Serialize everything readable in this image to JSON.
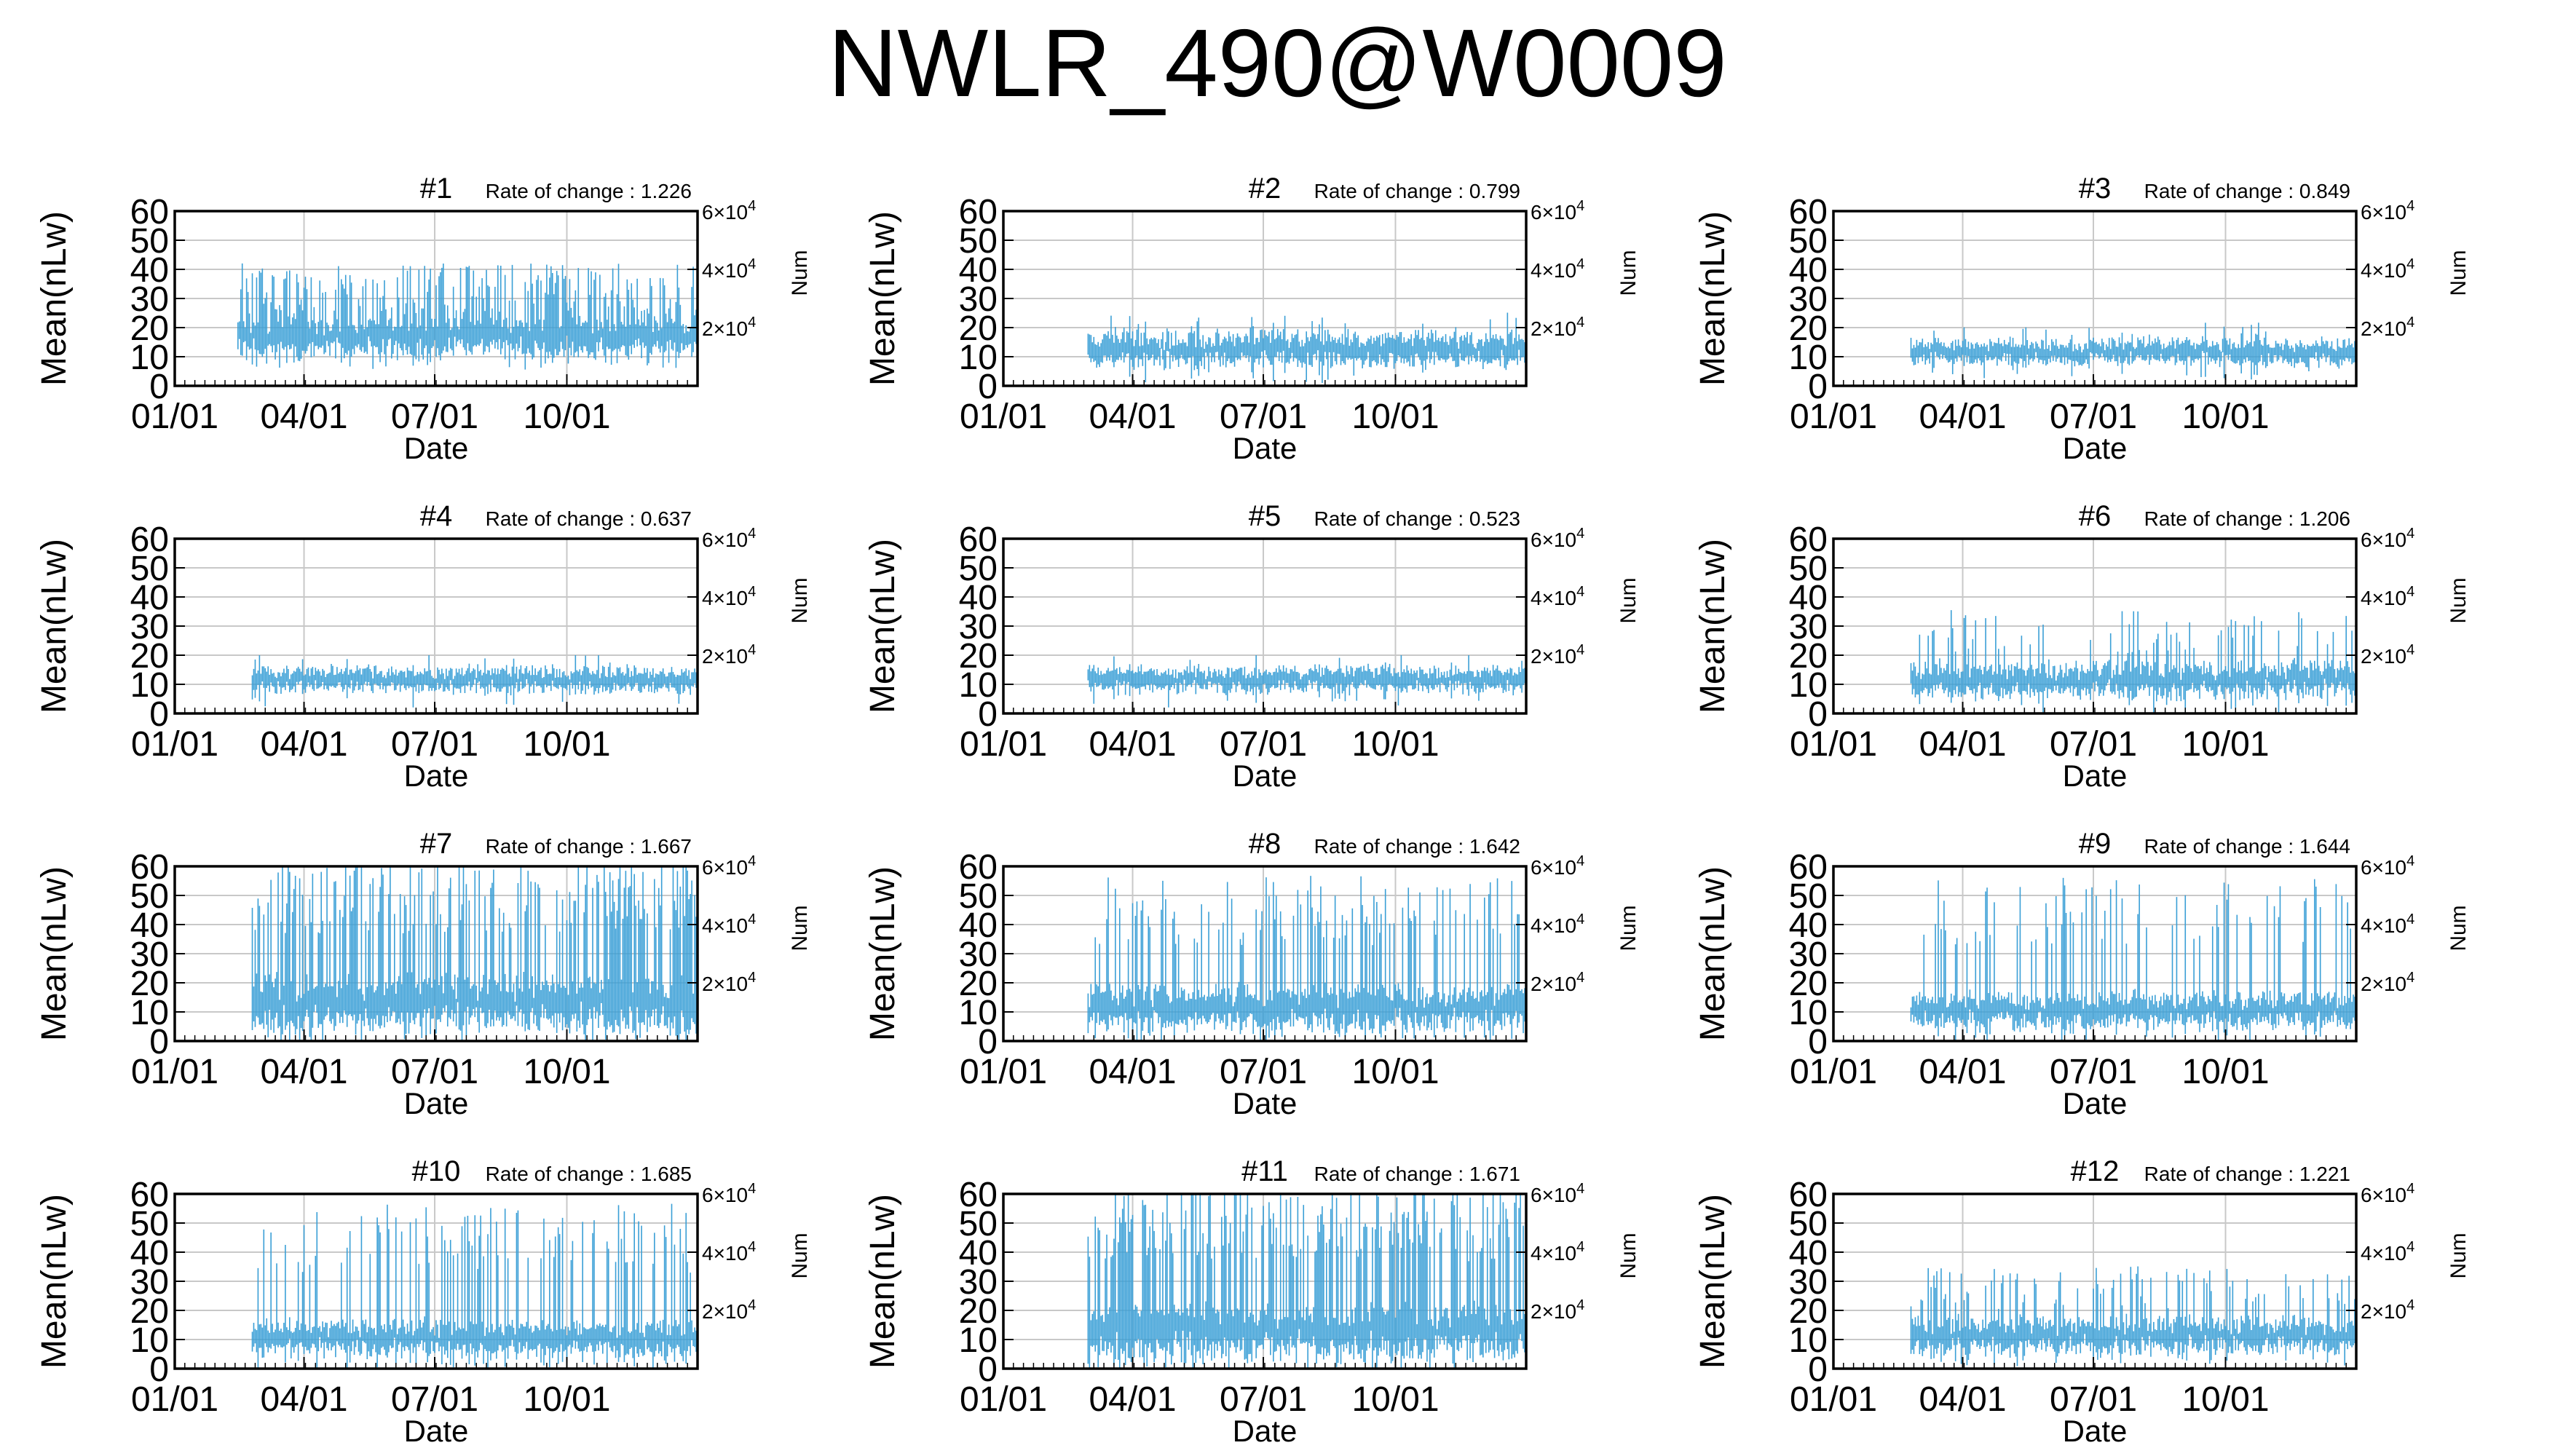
{
  "page": {
    "title": "NWLR_490@W0009"
  },
  "common": {
    "xlabel": "Date",
    "ylabel": "Mean(nLw)",
    "y2label": "Num",
    "rate_prefix": "Rate of change : ",
    "x_ticks": [
      {
        "label": "01/01",
        "day": 1
      },
      {
        "label": "04/01",
        "day": 91
      },
      {
        "label": "07/01",
        "day": 182
      },
      {
        "label": "10/01",
        "day": 274
      }
    ],
    "y_ticks": [
      0,
      10,
      20,
      30,
      40,
      50,
      60
    ],
    "y2_ticks": [
      {
        "base": "2×10",
        "exp": "4",
        "value": 20000
      },
      {
        "base": "4×10",
        "exp": "4",
        "value": 40000
      },
      {
        "base": "6×10",
        "exp": "4",
        "value": 60000
      }
    ],
    "colors": {
      "series": "#3a9fd6",
      "grid": "#c8c8c8",
      "axis": "#000000"
    }
  },
  "chart_data": [
    {
      "type": "scatter",
      "title": "#1",
      "rate_of_change": "1.226",
      "x_unit": "day of year",
      "xlim": [
        1,
        365
      ],
      "ylim": [
        0,
        60
      ],
      "y2lim": [
        0,
        60000
      ],
      "grid": true,
      "data_start": 45,
      "data_end": 365,
      "base_level": 18,
      "noise": 4,
      "spike_level": 30,
      "spike_prob": 0.55,
      "max_value": 60
    },
    {
      "type": "scatter",
      "title": "#2",
      "rate_of_change": "0.799",
      "x_unit": "day of year",
      "xlim": [
        1,
        365
      ],
      "ylim": [
        0,
        60
      ],
      "y2lim": [
        0,
        60000
      ],
      "grid": true,
      "data_start": 60,
      "data_end": 365,
      "base_level": 13,
      "noise": 4,
      "spike_level": 18,
      "spike_prob": 0.15,
      "max_value": 26
    },
    {
      "type": "scatter",
      "title": "#3",
      "rate_of_change": "0.849",
      "x_unit": "day of year",
      "xlim": [
        1,
        365
      ],
      "ylim": [
        0,
        60
      ],
      "y2lim": [
        0,
        60000
      ],
      "grid": true,
      "data_start": 55,
      "data_end": 365,
      "base_level": 12,
      "noise": 3,
      "spike_level": 16,
      "spike_prob": 0.12,
      "max_value": 24
    },
    {
      "type": "scatter",
      "title": "#4",
      "rate_of_change": "0.637",
      "x_unit": "day of year",
      "xlim": [
        1,
        365
      ],
      "ylim": [
        0,
        60
      ],
      "y2lim": [
        0,
        60000
      ],
      "grid": true,
      "data_start": 55,
      "data_end": 365,
      "base_level": 12,
      "noise": 3,
      "spike_level": 15,
      "spike_prob": 0.1,
      "max_value": 20
    },
    {
      "type": "scatter",
      "title": "#5",
      "rate_of_change": "0.523",
      "x_unit": "day of year",
      "xlim": [
        1,
        365
      ],
      "ylim": [
        0,
        60
      ],
      "y2lim": [
        0,
        60000
      ],
      "grid": true,
      "data_start": 60,
      "data_end": 365,
      "base_level": 12,
      "noise": 3,
      "spike_level": 15,
      "spike_prob": 0.1,
      "max_value": 20
    },
    {
      "type": "scatter",
      "title": "#6",
      "rate_of_change": "1.206",
      "x_unit": "day of year",
      "xlim": [
        1,
        365
      ],
      "ylim": [
        0,
        60
      ],
      "y2lim": [
        0,
        60000
      ],
      "grid": true,
      "data_start": 55,
      "data_end": 365,
      "base_level": 12,
      "noise": 4,
      "spike_level": 25,
      "spike_prob": 0.22,
      "max_value": 60
    },
    {
      "type": "scatter",
      "title": "#7",
      "rate_of_change": "1.667",
      "x_unit": "day of year",
      "xlim": [
        1,
        365
      ],
      "ylim": [
        0,
        60
      ],
      "y2lim": [
        0,
        60000
      ],
      "grid": true,
      "data_start": 55,
      "data_end": 365,
      "base_level": 14,
      "noise": 6,
      "spike_level": 45,
      "spike_prob": 0.5,
      "max_value": 60
    },
    {
      "type": "scatter",
      "title": "#8",
      "rate_of_change": "1.642",
      "x_unit": "day of year",
      "xlim": [
        1,
        365
      ],
      "ylim": [
        0,
        60
      ],
      "y2lim": [
        0,
        60000
      ],
      "grid": true,
      "data_start": 60,
      "data_end": 365,
      "base_level": 12,
      "noise": 5,
      "spike_level": 40,
      "spike_prob": 0.3,
      "max_value": 60
    },
    {
      "type": "scatter",
      "title": "#9",
      "rate_of_change": "1.644",
      "x_unit": "day of year",
      "xlim": [
        1,
        365
      ],
      "ylim": [
        0,
        60
      ],
      "y2lim": [
        0,
        60000
      ],
      "grid": true,
      "data_start": 55,
      "data_end": 365,
      "base_level": 11,
      "noise": 4,
      "spike_level": 40,
      "spike_prob": 0.25,
      "max_value": 60
    },
    {
      "type": "scatter",
      "title": "#10",
      "rate_of_change": "1.685",
      "x_unit": "day of year",
      "xlim": [
        1,
        365
      ],
      "ylim": [
        0,
        60
      ],
      "y2lim": [
        0,
        60000
      ],
      "grid": true,
      "data_start": 55,
      "data_end": 365,
      "base_level": 11,
      "noise": 4,
      "spike_level": 40,
      "spike_prob": 0.3,
      "max_value": 60
    },
    {
      "type": "scatter",
      "title": "#11",
      "rate_of_change": "1.671",
      "x_unit": "day of year",
      "xlim": [
        1,
        365
      ],
      "ylim": [
        0,
        60
      ],
      "y2lim": [
        0,
        60000
      ],
      "grid": true,
      "data_start": 60,
      "data_end": 365,
      "base_level": 14,
      "noise": 6,
      "spike_level": 45,
      "spike_prob": 0.55,
      "max_value": 60
    },
    {
      "type": "scatter",
      "title": "#12",
      "rate_of_change": "1.221",
      "x_unit": "day of year",
      "xlim": [
        1,
        365
      ],
      "ylim": [
        0,
        60
      ],
      "y2lim": [
        0,
        60000
      ],
      "grid": true,
      "data_start": 55,
      "data_end": 365,
      "base_level": 12,
      "noise": 4,
      "spike_level": 25,
      "spike_prob": 0.25,
      "max_value": 60
    }
  ]
}
